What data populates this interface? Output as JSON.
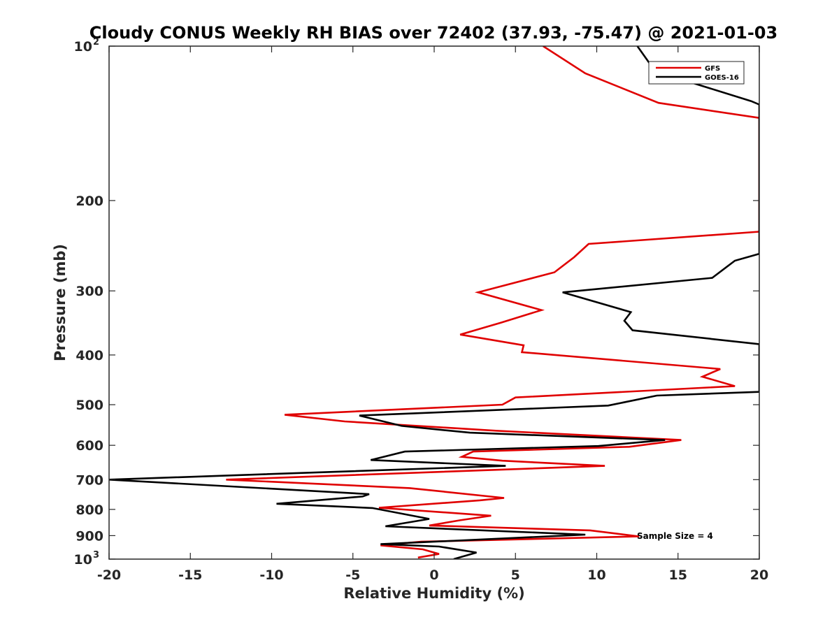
{
  "chart_data": {
    "type": "line",
    "title": "Cloudy CONUS Weekly RH BIAS over 72402 (37.93, -75.47) @ 2021-01-03",
    "xlabel": "Relative Humidity (%)",
    "ylabel": "Pressure (mb)",
    "xlim": [
      -20,
      20
    ],
    "ylim": [
      100,
      1000
    ],
    "y_scale": "log",
    "y_reversed": true,
    "x_ticks": [
      -20,
      -15,
      -10,
      -5,
      0,
      5,
      10,
      15,
      20
    ],
    "x_tick_labels": [
      "-20",
      "-15",
      "-10",
      "-5",
      "0",
      "5",
      "10",
      "15",
      "20"
    ],
    "y_ticks": [
      100,
      200,
      300,
      400,
      500,
      600,
      700,
      800,
      900,
      1000
    ],
    "y_tick_labels": [
      "200",
      "300",
      "400",
      "500",
      "600",
      "700",
      "800",
      "900"
    ],
    "y_tick_major_base": "10",
    "y_tick_major_exp": [
      "2",
      "3"
    ],
    "grid": false,
    "legend_position": "top-right",
    "annotation": "Sample Size = 4",
    "series": [
      {
        "name": "GFS",
        "color": "#e00000",
        "points": [
          [
            6.7,
            100
          ],
          [
            9.3,
            113
          ],
          [
            13.8,
            129
          ],
          [
            20.0,
            138
          ],
          [
            20.0,
            230
          ],
          [
            9.5,
            243
          ],
          [
            8.6,
            258
          ],
          [
            7.4,
            276
          ],
          [
            2.7,
            302
          ],
          [
            6.6,
            327
          ],
          [
            4.1,
            346
          ],
          [
            1.6,
            365
          ],
          [
            5.5,
            383
          ],
          [
            5.4,
            395
          ],
          [
            17.6,
            426
          ],
          [
            16.5,
            441
          ],
          [
            18.5,
            460
          ],
          [
            5.0,
            484
          ],
          [
            4.2,
            500
          ],
          [
            -9.2,
            523
          ],
          [
            -5.5,
            539
          ],
          [
            3.8,
            562
          ],
          [
            15.2,
            586
          ],
          [
            12.0,
            604
          ],
          [
            2.4,
            617
          ],
          [
            1.7,
            632
          ],
          [
            4.2,
            643
          ],
          [
            10.5,
            658
          ],
          [
            -12.8,
            700
          ],
          [
            -1.5,
            727
          ],
          [
            4.3,
            760
          ],
          [
            2.8,
            768
          ],
          [
            -3.4,
            794
          ],
          [
            3.5,
            823
          ],
          [
            1.6,
            840
          ],
          [
            -0.3,
            860
          ],
          [
            9.6,
            879
          ],
          [
            12.6,
            903
          ],
          [
            -0.8,
            925
          ],
          [
            -3.3,
            940
          ],
          [
            -0.7,
            957
          ],
          [
            0.3,
            977
          ],
          [
            -1.0,
            993
          ]
        ]
      },
      {
        "name": "GOES-16",
        "color": "#000000",
        "points": [
          [
            12.5,
            100
          ],
          [
            13.6,
            112
          ],
          [
            19.5,
            128
          ],
          [
            20.0,
            130
          ],
          [
            20.0,
            254
          ],
          [
            18.5,
            262
          ],
          [
            17.1,
            283
          ],
          [
            7.9,
            302
          ],
          [
            12.1,
            330
          ],
          [
            11.7,
            343
          ],
          [
            12.2,
            358
          ],
          [
            20.0,
            381
          ],
          [
            20.0,
            472
          ],
          [
            13.7,
            480
          ],
          [
            10.7,
            502
          ],
          [
            -4.6,
            525
          ],
          [
            -2.0,
            550
          ],
          [
            2.2,
            567
          ],
          [
            14.2,
            586
          ],
          [
            10.1,
            602
          ],
          [
            -1.8,
            617
          ],
          [
            -3.9,
            641
          ],
          [
            4.4,
            658
          ],
          [
            -20.0,
            700
          ],
          [
            -4.0,
            747
          ],
          [
            -4.4,
            755
          ],
          [
            -9.7,
            780
          ],
          [
            -3.8,
            795
          ],
          [
            -0.3,
            835
          ],
          [
            -3.0,
            863
          ],
          [
            9.3,
            896
          ],
          [
            -3.3,
            935
          ],
          [
            0.3,
            945
          ],
          [
            2.6,
            971
          ],
          [
            1.2,
            1000
          ]
        ]
      }
    ]
  }
}
